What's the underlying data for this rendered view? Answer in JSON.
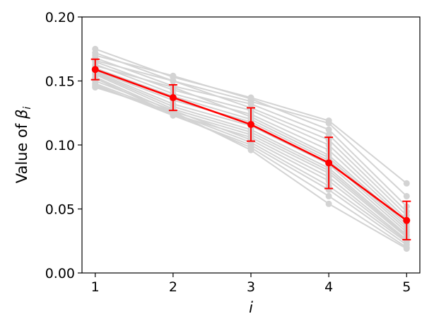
{
  "chart_data": {
    "type": "line",
    "xlabel": "i",
    "ylabel_prefix": "Value of ",
    "ylabel_symbol": "β",
    "ylabel_subscript": "i",
    "x": [
      1,
      2,
      3,
      4,
      5
    ],
    "x_ticks": [
      "1",
      "2",
      "3",
      "4",
      "5"
    ],
    "y_ticks": [
      "0.00",
      "0.05",
      "0.10",
      "0.15",
      "0.20"
    ],
    "y_tick_values": [
      0.0,
      0.05,
      0.1,
      0.15,
      0.2
    ],
    "xlim": [
      0.83,
      5.17
    ],
    "ylim": [
      0.0,
      0.2
    ],
    "grid": false,
    "legend": "none",
    "background_series_color": "#d3d3d3",
    "mean_series_color": "#ff0000",
    "background_series": [
      [
        0.175,
        0.153,
        0.137,
        0.119,
        0.07
      ],
      [
        0.172,
        0.15,
        0.134,
        0.117,
        0.06
      ],
      [
        0.17,
        0.154,
        0.136,
        0.112,
        0.052
      ],
      [
        0.168,
        0.146,
        0.132,
        0.108,
        0.048
      ],
      [
        0.166,
        0.15,
        0.129,
        0.104,
        0.045
      ],
      [
        0.165,
        0.143,
        0.127,
        0.1,
        0.042
      ],
      [
        0.163,
        0.14,
        0.124,
        0.096,
        0.04
      ],
      [
        0.162,
        0.145,
        0.122,
        0.092,
        0.038
      ],
      [
        0.16,
        0.138,
        0.12,
        0.09,
        0.036
      ],
      [
        0.158,
        0.135,
        0.118,
        0.088,
        0.034
      ],
      [
        0.157,
        0.132,
        0.115,
        0.085,
        0.032
      ],
      [
        0.156,
        0.13,
        0.112,
        0.082,
        0.03
      ],
      [
        0.155,
        0.128,
        0.11,
        0.08,
        0.029
      ],
      [
        0.153,
        0.126,
        0.108,
        0.078,
        0.028
      ],
      [
        0.152,
        0.124,
        0.106,
        0.075,
        0.026
      ],
      [
        0.15,
        0.127,
        0.104,
        0.072,
        0.025
      ],
      [
        0.148,
        0.125,
        0.102,
        0.068,
        0.024
      ],
      [
        0.147,
        0.123,
        0.1,
        0.065,
        0.022
      ],
      [
        0.146,
        0.124,
        0.098,
        0.06,
        0.02
      ],
      [
        0.145,
        0.126,
        0.096,
        0.054,
        0.019
      ]
    ],
    "mean_series": {
      "values": [
        0.159,
        0.137,
        0.116,
        0.086,
        0.041
      ],
      "error": [
        0.008,
        0.01,
        0.013,
        0.02,
        0.015
      ]
    }
  }
}
